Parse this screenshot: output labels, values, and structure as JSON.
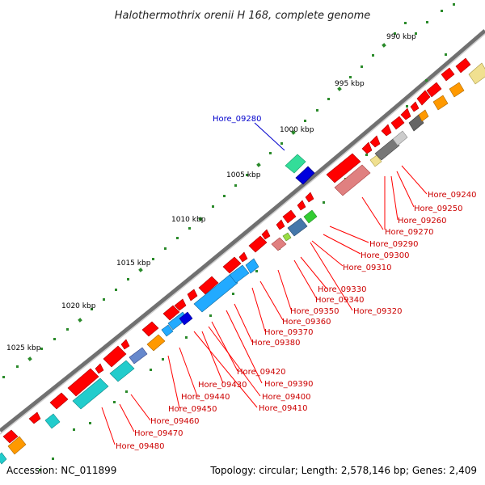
{
  "title": "Halothermothrix orenii H 168, complete genome",
  "footer": {
    "accession": "Accession: NC_011899",
    "topology": "Topology: circular; Length: 2,578,146 bp; Genes: 2,409"
  },
  "kbp_labels": [
    "990 kbp",
    "995 kbp",
    "1000 kbp",
    "1005 kbp",
    "1010 kbp",
    "1015 kbp",
    "1020 kbp",
    "1025 kbp"
  ],
  "highlighted_gene": "Hore_09280",
  "gene_labels": [
    "Hore_09240",
    "Hore_09250",
    "Hore_09260",
    "Hore_09270",
    "Hore_09290",
    "Hore_09300",
    "Hore_09310",
    "Hore_09330",
    "Hore_09340",
    "Hore_09320",
    "Hore_09350",
    "Hore_09360",
    "Hore_09370",
    "Hore_09380",
    "Hore_09390",
    "Hore_09420",
    "Hore_09400",
    "Hore_09430",
    "Hore_09410",
    "Hore_09440",
    "Hore_09450",
    "Hore_09460",
    "Hore_09470",
    "Hore_09480"
  ],
  "colors": {
    "forward_gene": "#ff0000",
    "reverse_gene": "#e06060",
    "label_red": "#cc0000",
    "label_blue": "#0000cc",
    "backbone": "#707070",
    "tick_green": "#2a8a2a"
  }
}
